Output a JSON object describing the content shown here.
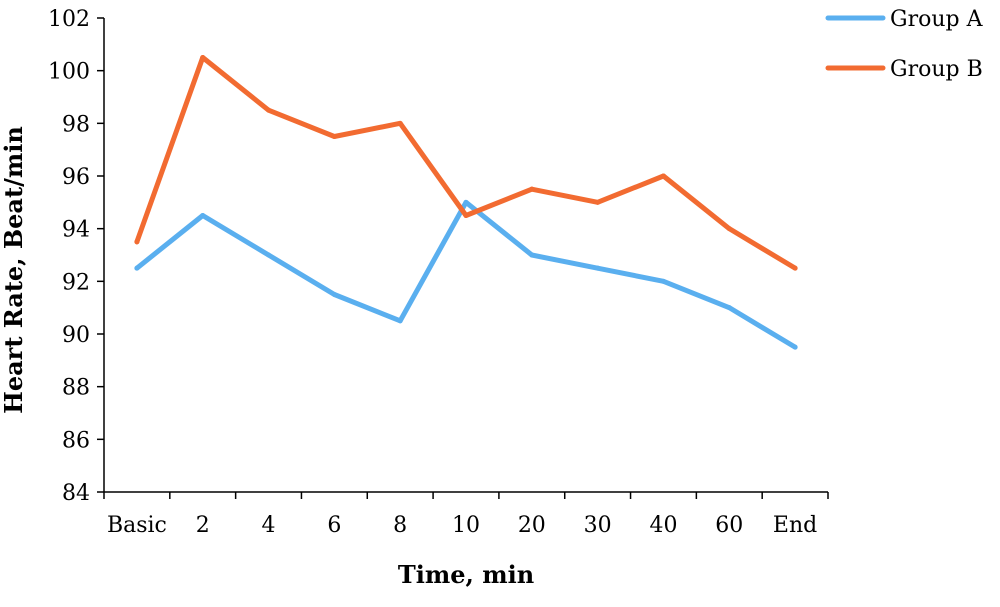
{
  "chart_data": {
    "type": "line",
    "title": "",
    "xlabel": "Time, min",
    "ylabel": "Heart Rate, Beat/min",
    "categories": [
      "Basic",
      "2",
      "4",
      "6",
      "8",
      "10",
      "20",
      "30",
      "40",
      "60",
      "End"
    ],
    "ylim": [
      84,
      102
    ],
    "yticks": [
      84,
      86,
      88,
      90,
      92,
      94,
      96,
      98,
      100,
      102
    ],
    "grid": false,
    "legend_position": "top-right",
    "series": [
      {
        "name": "Group A",
        "color": "#5aafef",
        "values": [
          92.5,
          94.5,
          93.0,
          91.5,
          90.5,
          95.0,
          93.0,
          92.5,
          92.0,
          91.0,
          89.5
        ]
      },
      {
        "name": "Group B",
        "color": "#f26b31",
        "values": [
          93.5,
          100.5,
          98.5,
          97.5,
          98.0,
          94.5,
          95.5,
          95.0,
          96.0,
          94.0,
          92.5
        ]
      }
    ]
  }
}
